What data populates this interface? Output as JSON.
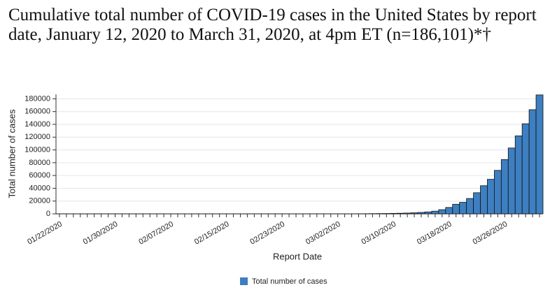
{
  "chart_data": {
    "type": "bar",
    "title": "Cumulative total number of COVID-19 cases in the United States by report date, January 12, 2020 to March 31, 2020, at 4pm ET (n=186,101)*†",
    "x_label": "Report Date",
    "y_label": "Total number of cases",
    "categories": [
      "01/22/2020",
      null,
      null,
      null,
      null,
      null,
      null,
      null,
      "01/30/2020",
      null,
      null,
      null,
      null,
      null,
      null,
      null,
      "02/07/2020",
      null,
      null,
      null,
      null,
      null,
      null,
      null,
      "02/15/2020",
      null,
      null,
      null,
      null,
      null,
      null,
      null,
      "02/23/2020",
      null,
      null,
      null,
      null,
      null,
      null,
      null,
      "03/02/2020",
      null,
      null,
      null,
      null,
      null,
      null,
      null,
      "03/10/2020",
      null,
      null,
      null,
      null,
      null,
      null,
      null,
      "03/18/2020",
      null,
      null,
      null,
      null,
      null,
      null,
      null,
      "03/26/2020",
      null,
      null,
      null,
      null,
      null
    ],
    "series": [
      {
        "name": "Total number of cases",
        "color": "#3d7fc0",
        "values": [
          1,
          1,
          2,
          2,
          5,
          5,
          5,
          5,
          5,
          6,
          7,
          8,
          11,
          11,
          11,
          12,
          12,
          12,
          12,
          12,
          13,
          14,
          14,
          14,
          15,
          15,
          15,
          15,
          15,
          15,
          15,
          15,
          15,
          15,
          15,
          15,
          15,
          16,
          16,
          30,
          50,
          70,
          100,
          130,
          200,
          300,
          400,
          500,
          700,
          900,
          1200,
          1600,
          2200,
          3000,
          4200,
          6500,
          10000,
          15000,
          18000,
          24000,
          33000,
          44000,
          54000,
          68000,
          85000,
          103000,
          122000,
          141000,
          163000,
          186101
        ]
      }
    ],
    "ylim": [
      0,
      187000
    ],
    "yticks": [
      0,
      20000,
      40000,
      60000,
      80000,
      100000,
      120000,
      140000,
      160000,
      180000
    ],
    "grid": true,
    "legend": "bottom"
  }
}
